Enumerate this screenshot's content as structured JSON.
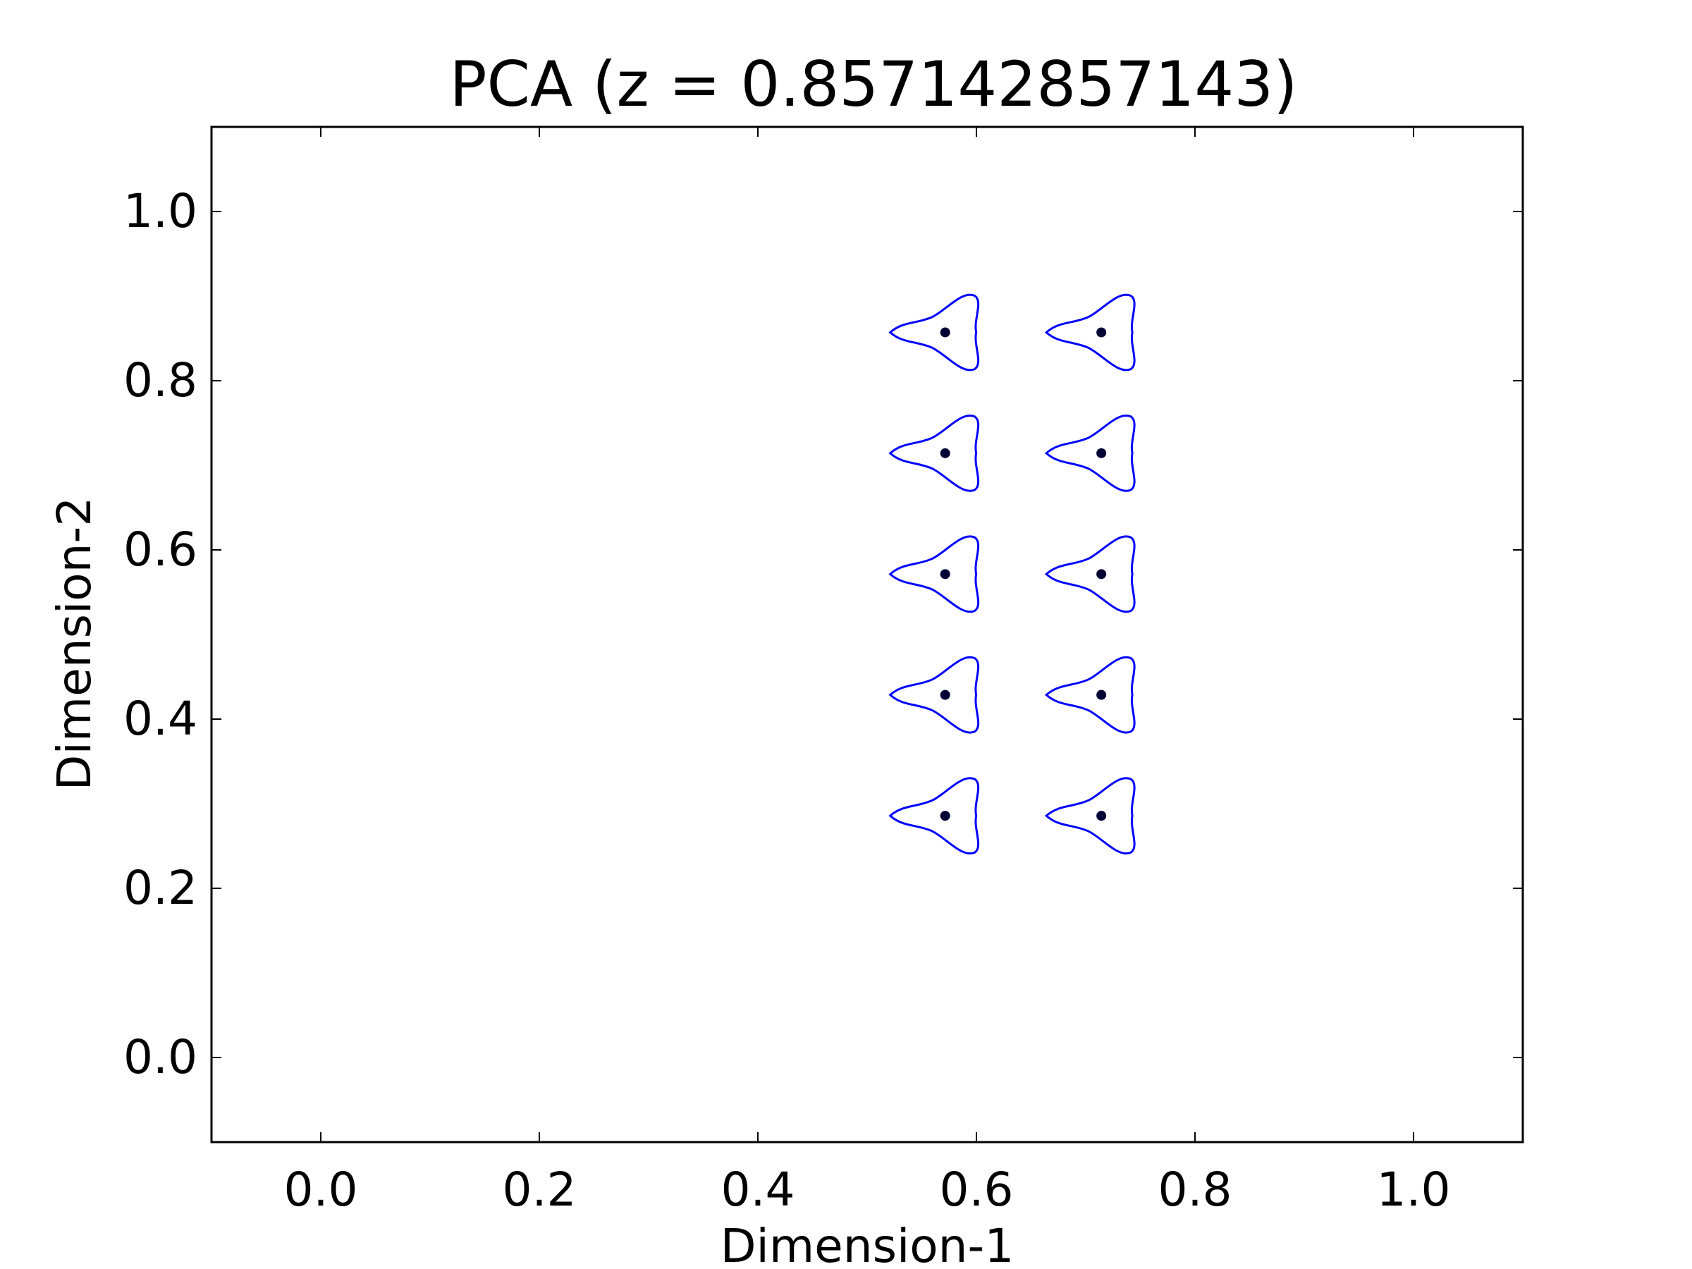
{
  "chart_data": {
    "type": "scatter",
    "title": "PCA (z = 0.857142857143)",
    "xlabel": "Dimension-1",
    "ylabel": "Dimension-2",
    "xlim": [
      -0.1,
      1.1
    ],
    "ylim": [
      -0.1,
      1.1
    ],
    "xticks": [
      0.0,
      0.2,
      0.4,
      0.6,
      0.8,
      1.0
    ],
    "yticks": [
      0.0,
      0.2,
      0.4,
      0.6,
      0.8,
      1.0
    ],
    "xtick_labels": [
      "0.0",
      "0.2",
      "0.4",
      "0.6",
      "0.8",
      "1.0"
    ],
    "ytick_labels": [
      "0.0",
      "0.2",
      "0.4",
      "0.6",
      "0.8",
      "1.0"
    ],
    "grid": false,
    "points": [
      {
        "x": 0.5714,
        "y": 0.2857
      },
      {
        "x": 0.5714,
        "y": 0.4286
      },
      {
        "x": 0.5714,
        "y": 0.5714
      },
      {
        "x": 0.5714,
        "y": 0.7143
      },
      {
        "x": 0.5714,
        "y": 0.8571
      },
      {
        "x": 0.7143,
        "y": 0.2857
      },
      {
        "x": 0.7143,
        "y": 0.4286
      },
      {
        "x": 0.7143,
        "y": 0.5714
      },
      {
        "x": 0.7143,
        "y": 0.7143
      },
      {
        "x": 0.7143,
        "y": 0.8571
      }
    ],
    "colors": {
      "point": "#000033",
      "glyph_outline": "#0000ff",
      "axes": "#000000"
    }
  }
}
